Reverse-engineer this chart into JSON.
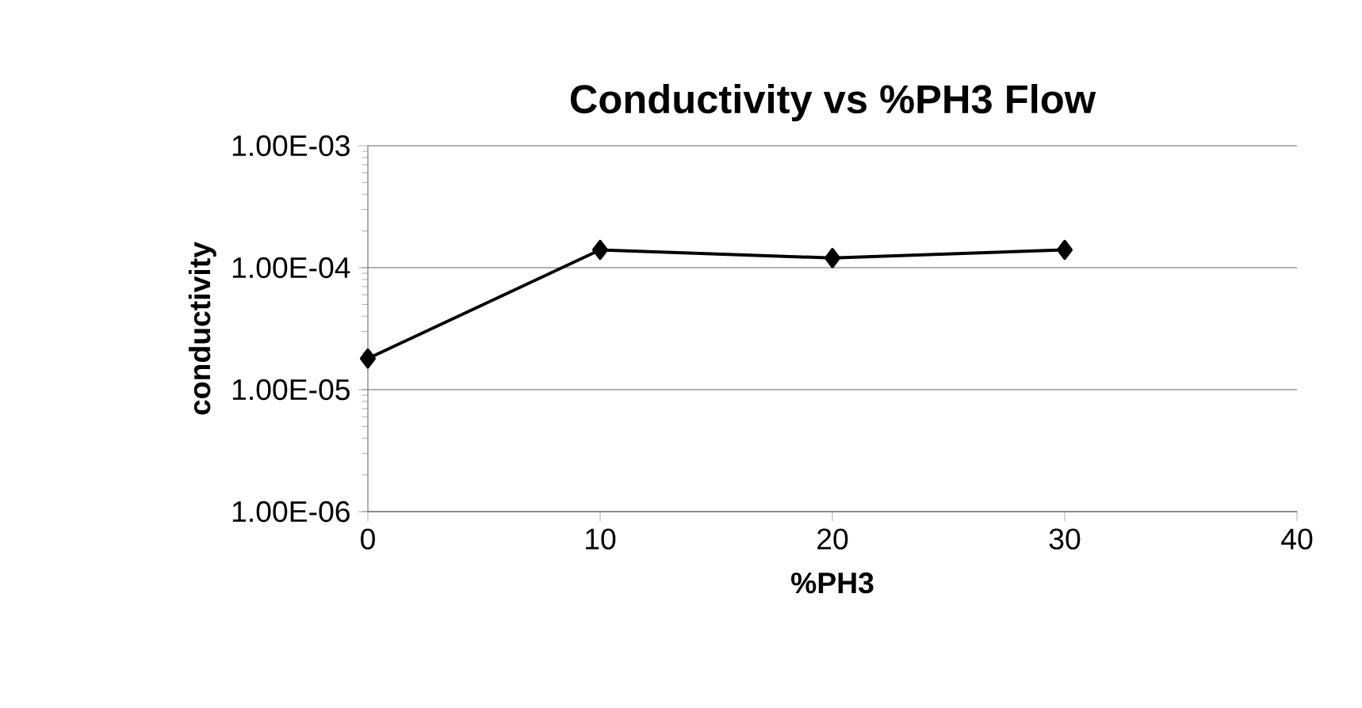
{
  "chart_data": {
    "type": "line",
    "title": "Conductivity vs %PH3 Flow",
    "xlabel": "%PH3",
    "ylabel": "conductivity",
    "x": [
      0,
      10,
      20,
      30
    ],
    "series": [
      {
        "color": "#000000",
        "values": [
          1.8e-05,
          0.00014,
          0.00012,
          0.00014
        ]
      }
    ],
    "log": "y",
    "xlim": [
      0,
      40
    ],
    "xticks": [
      0,
      10,
      20,
      30,
      40
    ],
    "ylim": [
      1e-06,
      0.001
    ],
    "yticks": [
      {
        "value": 1e-06,
        "label": "1.00E-06"
      },
      {
        "value": 1e-05,
        "label": "1.00E-05"
      },
      {
        "value": 0.0001,
        "label": "1.00E-04"
      },
      {
        "value": 0.001,
        "label": "1.00E-03"
      }
    ],
    "grid": "y",
    "marker": "diamond",
    "line_style": "solid"
  }
}
